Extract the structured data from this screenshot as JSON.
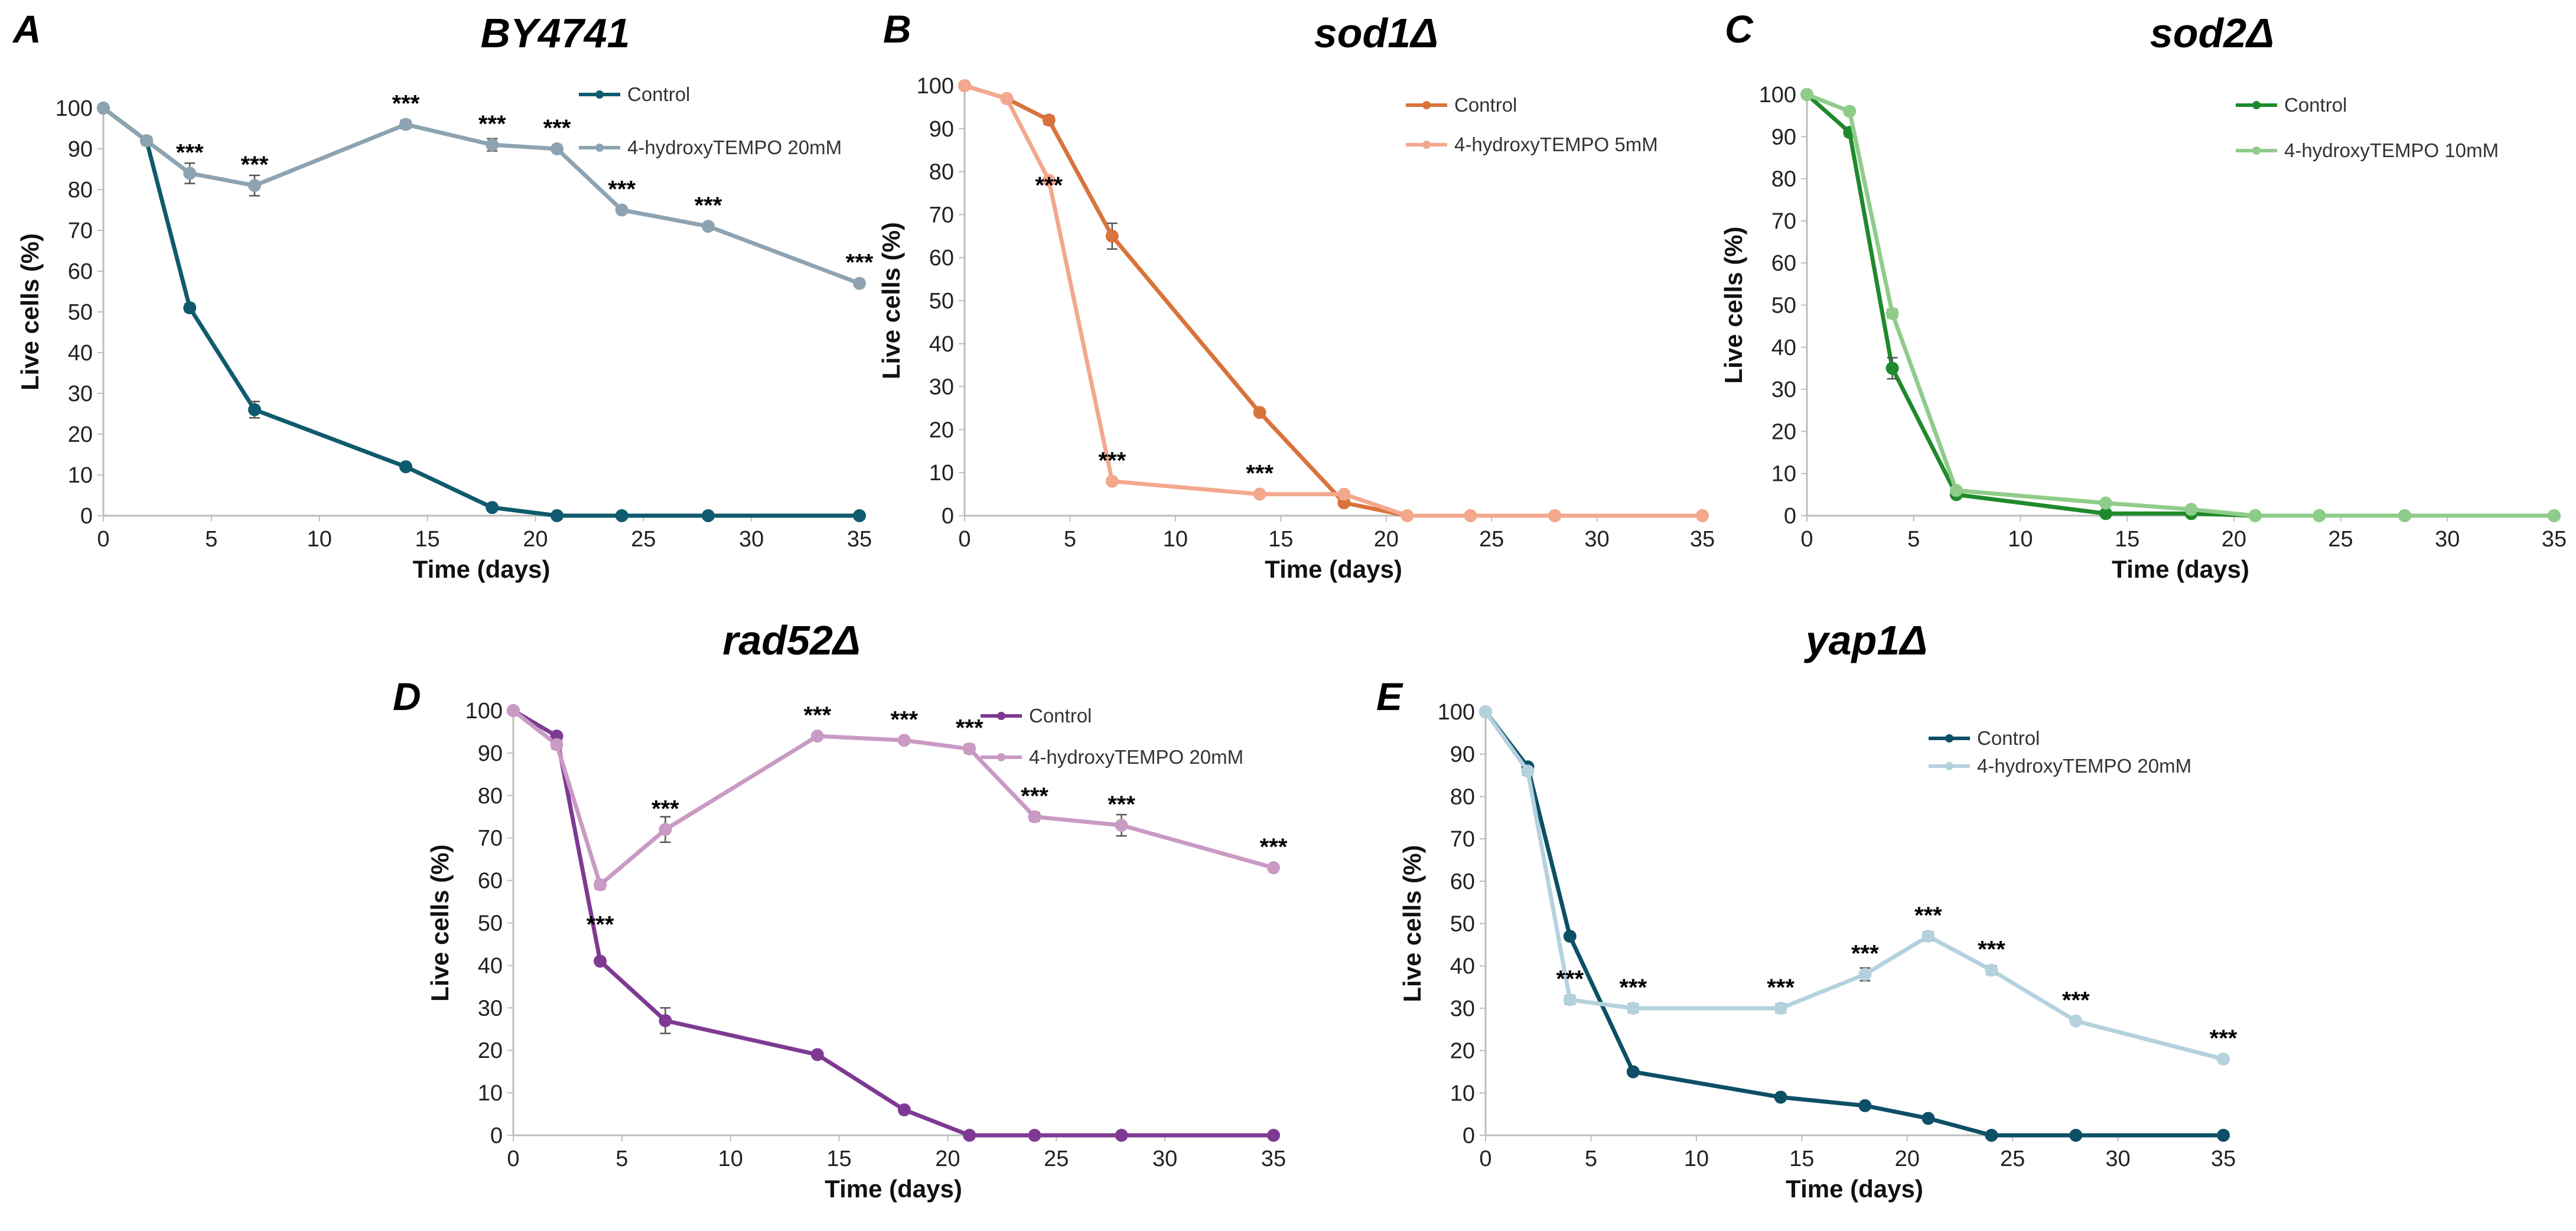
{
  "chart_data": [
    {
      "panel": "A",
      "type": "line",
      "title": "BY4741",
      "xlabel": "Time (days)",
      "ylabel": "Live cells (%)",
      "xlim": [
        0,
        35
      ],
      "ylim": [
        0,
        100
      ],
      "xticks": [
        0,
        5,
        10,
        15,
        20,
        25,
        30,
        35
      ],
      "yticks": [
        0,
        10,
        20,
        30,
        40,
        50,
        60,
        70,
        80,
        90,
        100
      ],
      "legend_position": "top-right",
      "series": [
        {
          "name": "Control",
          "color": "#0f5a6e",
          "x": [
            0,
            2,
            4,
            7,
            14,
            18,
            21,
            24,
            28,
            35
          ],
          "y": [
            100,
            92,
            51,
            26,
            12,
            2,
            0,
            0,
            0,
            0
          ],
          "err": [
            0,
            1,
            1,
            2,
            0.5,
            0.5,
            0,
            0,
            0,
            0
          ]
        },
        {
          "name": "4-hydroxyTEMPO 20mM",
          "color": "#8da3b1",
          "x": [
            0,
            2,
            4,
            7,
            14,
            18,
            21,
            24,
            28,
            35
          ],
          "y": [
            100,
            92,
            84,
            81,
            96,
            91,
            90,
            75,
            71,
            57
          ],
          "err": [
            0,
            1,
            2.5,
            2.5,
            1,
            1.5,
            0.5,
            0.5,
            0.5,
            0.5
          ]
        }
      ],
      "annotations": [
        {
          "x": 4,
          "y": 84,
          "text": "***"
        },
        {
          "x": 7,
          "y": 81,
          "text": "***"
        },
        {
          "x": 14,
          "y": 96,
          "text": "***"
        },
        {
          "x": 18,
          "y": 91,
          "text": "***"
        },
        {
          "x": 21,
          "y": 90,
          "text": "***"
        },
        {
          "x": 24,
          "y": 75,
          "text": "***"
        },
        {
          "x": 28,
          "y": 71,
          "text": "***"
        },
        {
          "x": 35,
          "y": 57,
          "text": "***"
        }
      ]
    },
    {
      "panel": "B",
      "type": "line",
      "title": "sod1Δ",
      "xlabel": "Time (days)",
      "ylabel": "Live cells (%)",
      "xlim": [
        0,
        35
      ],
      "ylim": [
        0,
        100
      ],
      "xticks": [
        0,
        5,
        10,
        15,
        20,
        25,
        30,
        35
      ],
      "yticks": [
        0,
        10,
        20,
        30,
        40,
        50,
        60,
        70,
        80,
        90,
        100
      ],
      "legend_position": "top-right",
      "series": [
        {
          "name": "Control",
          "color": "#d8733b",
          "x": [
            0,
            2,
            4,
            7,
            14,
            18,
            21,
            24,
            28,
            35
          ],
          "y": [
            100,
            97,
            92,
            65,
            24,
            3,
            0,
            0,
            0,
            0
          ],
          "err": [
            0,
            0.5,
            1,
            3,
            0.5,
            0.5,
            0,
            0,
            0,
            0
          ]
        },
        {
          "name": "4-hydroxyTEMPO 5mM",
          "color": "#f3a88e",
          "x": [
            0,
            2,
            4,
            7,
            14,
            18,
            21,
            24,
            28,
            35
          ],
          "y": [
            100,
            97,
            78,
            8,
            5,
            5,
            0,
            0,
            0,
            0
          ],
          "err": [
            0,
            0.5,
            0.5,
            0.5,
            0.5,
            0.5,
            0,
            0,
            0,
            0
          ]
        }
      ],
      "annotations": [
        {
          "x": 4,
          "y": 72,
          "text": "***"
        },
        {
          "x": 7,
          "y": 8,
          "text": "***"
        },
        {
          "x": 14,
          "y": 5,
          "text": "***"
        }
      ]
    },
    {
      "panel": "C",
      "type": "line",
      "title": "sod2Δ",
      "xlabel": "Time (days)",
      "ylabel": "Live cells (%)",
      "xlim": [
        0,
        35
      ],
      "ylim": [
        0,
        100
      ],
      "xticks": [
        0,
        5,
        10,
        15,
        20,
        25,
        30,
        35
      ],
      "yticks": [
        0,
        10,
        20,
        30,
        40,
        50,
        60,
        70,
        80,
        90,
        100
      ],
      "legend_position": "top-right",
      "series": [
        {
          "name": "Control",
          "color": "#1f8a2c",
          "x": [
            0,
            2,
            4,
            7,
            14,
            18,
            21,
            24,
            28,
            35
          ],
          "y": [
            100,
            91,
            35,
            5,
            0.5,
            0.5,
            0,
            0,
            0,
            0
          ],
          "err": [
            0,
            1,
            2.5,
            0.5,
            0,
            0,
            0,
            0,
            0,
            0
          ]
        },
        {
          "name": "4-hydroxyTEMPO 10mM",
          "color": "#8fcc8a",
          "x": [
            0,
            2,
            4,
            7,
            14,
            18,
            21,
            24,
            28,
            35
          ],
          "y": [
            100,
            96,
            48,
            6,
            3,
            1.5,
            0,
            0,
            0,
            0
          ],
          "err": [
            0,
            0.5,
            1,
            0.5,
            0,
            0,
            0,
            0,
            0,
            0
          ]
        }
      ],
      "annotations": []
    },
    {
      "panel": "D",
      "type": "line",
      "title": "rad52Δ",
      "xlabel": "Time (days)",
      "ylabel": "Live cells (%)",
      "xlim": [
        0,
        35
      ],
      "ylim": [
        0,
        100
      ],
      "xticks": [
        0,
        5,
        10,
        15,
        20,
        25,
        30,
        35
      ],
      "yticks": [
        0,
        10,
        20,
        30,
        40,
        50,
        60,
        70,
        80,
        90,
        100
      ],
      "legend_position": "top-right",
      "series": [
        {
          "name": "Control",
          "color": "#7e3a93",
          "x": [
            0,
            2,
            4,
            7,
            14,
            18,
            21,
            24,
            28,
            35
          ],
          "y": [
            100,
            94,
            41,
            27,
            19,
            6,
            0,
            0,
            0,
            0
          ],
          "err": [
            0,
            0.5,
            0.5,
            3,
            0.5,
            0.5,
            0,
            0,
            0,
            0
          ]
        },
        {
          "name": "4-hydroxyTEMPO 20mM",
          "color": "#c99ac4",
          "x": [
            0,
            2,
            4,
            7,
            14,
            18,
            21,
            24,
            28,
            35
          ],
          "y": [
            100,
            92,
            59,
            72,
            94,
            93,
            91,
            75,
            73,
            63
          ],
          "err": [
            0,
            1,
            1,
            3,
            0.5,
            0.5,
            1,
            1,
            2.5,
            0.5
          ]
        }
      ],
      "annotations": [
        {
          "x": 4,
          "y": 55,
          "text": "***",
          "below": true
        },
        {
          "x": 7,
          "y": 72,
          "text": "***"
        },
        {
          "x": 14,
          "y": 94,
          "text": "***"
        },
        {
          "x": 18,
          "y": 93,
          "text": "***"
        },
        {
          "x": 21,
          "y": 91,
          "text": "***"
        },
        {
          "x": 24,
          "y": 75,
          "text": "***"
        },
        {
          "x": 28,
          "y": 73,
          "text": "***"
        },
        {
          "x": 35,
          "y": 63,
          "text": "***"
        }
      ]
    },
    {
      "panel": "E",
      "type": "line",
      "title": "yap1Δ",
      "xlabel": "Time (days)",
      "ylabel": "Live cells (%)",
      "xlim": [
        0,
        35
      ],
      "ylim": [
        0,
        100
      ],
      "xticks": [
        0,
        5,
        10,
        15,
        20,
        25,
        30,
        35
      ],
      "yticks": [
        0,
        10,
        20,
        30,
        40,
        50,
        60,
        70,
        80,
        90,
        100
      ],
      "legend_position": "top-right",
      "series": [
        {
          "name": "Control",
          "color": "#0d4f66",
          "x": [
            0,
            2,
            4,
            7,
            14,
            18,
            21,
            24,
            28,
            35
          ],
          "y": [
            100,
            87,
            47,
            15,
            9,
            7,
            4,
            0,
            0,
            0
          ],
          "err": [
            0,
            0.5,
            0.5,
            0.5,
            0.5,
            0.5,
            0.5,
            0,
            0,
            0
          ]
        },
        {
          "name": "4-hydroxyTEMPO 20mM",
          "color": "#b4d2de",
          "x": [
            0,
            2,
            4,
            7,
            14,
            18,
            21,
            24,
            28,
            35
          ],
          "y": [
            100,
            86,
            32,
            30,
            30,
            38,
            47,
            39,
            27,
            18
          ],
          "err": [
            0,
            1,
            1,
            1,
            1,
            1.5,
            1,
            1,
            0.5,
            0.5
          ]
        }
      ],
      "annotations": [
        {
          "x": 4,
          "y": 32,
          "text": "***"
        },
        {
          "x": 7,
          "y": 30,
          "text": "***"
        },
        {
          "x": 14,
          "y": 30,
          "text": "***"
        },
        {
          "x": 18,
          "y": 38,
          "text": "***"
        },
        {
          "x": 21,
          "y": 47,
          "text": "***"
        },
        {
          "x": 24,
          "y": 39,
          "text": "***"
        },
        {
          "x": 28,
          "y": 27,
          "text": "***"
        },
        {
          "x": 35,
          "y": 18,
          "text": "***"
        }
      ]
    }
  ]
}
